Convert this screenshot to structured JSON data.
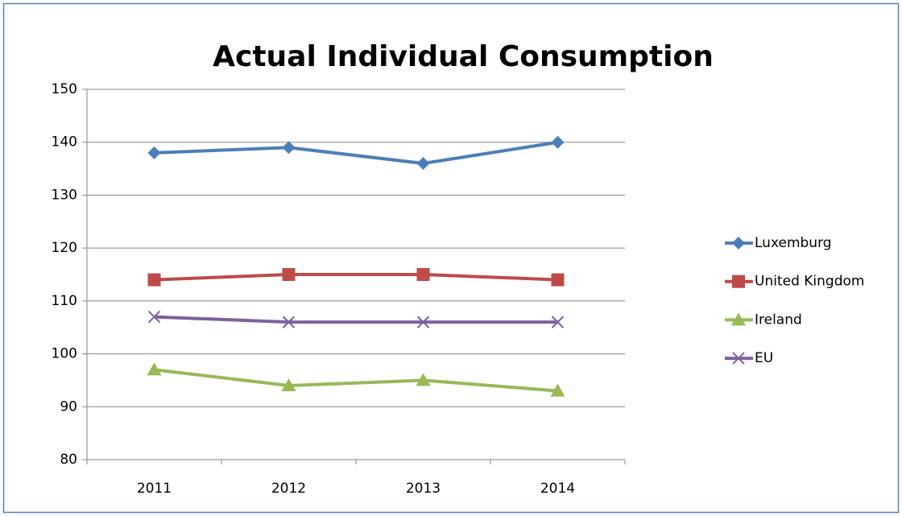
{
  "chart_data": {
    "type": "line",
    "title": "Actual Individual Consumption",
    "categories": [
      "2011",
      "2012",
      "2013",
      "2014"
    ],
    "series": [
      {
        "name": "Luxemburg",
        "color": "#4a7ebb",
        "marker": "diamond",
        "values": [
          138,
          139,
          136,
          140
        ]
      },
      {
        "name": "United Kingdom",
        "color": "#be4b48",
        "marker": "square",
        "values": [
          114,
          115,
          115,
          114
        ]
      },
      {
        "name": "Ireland",
        "color": "#98b954",
        "marker": "triangle",
        "values": [
          97,
          94,
          95,
          93
        ]
      },
      {
        "name": "EU",
        "color": "#7d60a0",
        "marker": "x",
        "values": [
          107,
          106,
          106,
          106
        ]
      }
    ],
    "ylim": [
      80,
      150
    ],
    "yticks": [
      80,
      90,
      100,
      110,
      120,
      130,
      140,
      150
    ],
    "grid": true,
    "legend": "right"
  }
}
